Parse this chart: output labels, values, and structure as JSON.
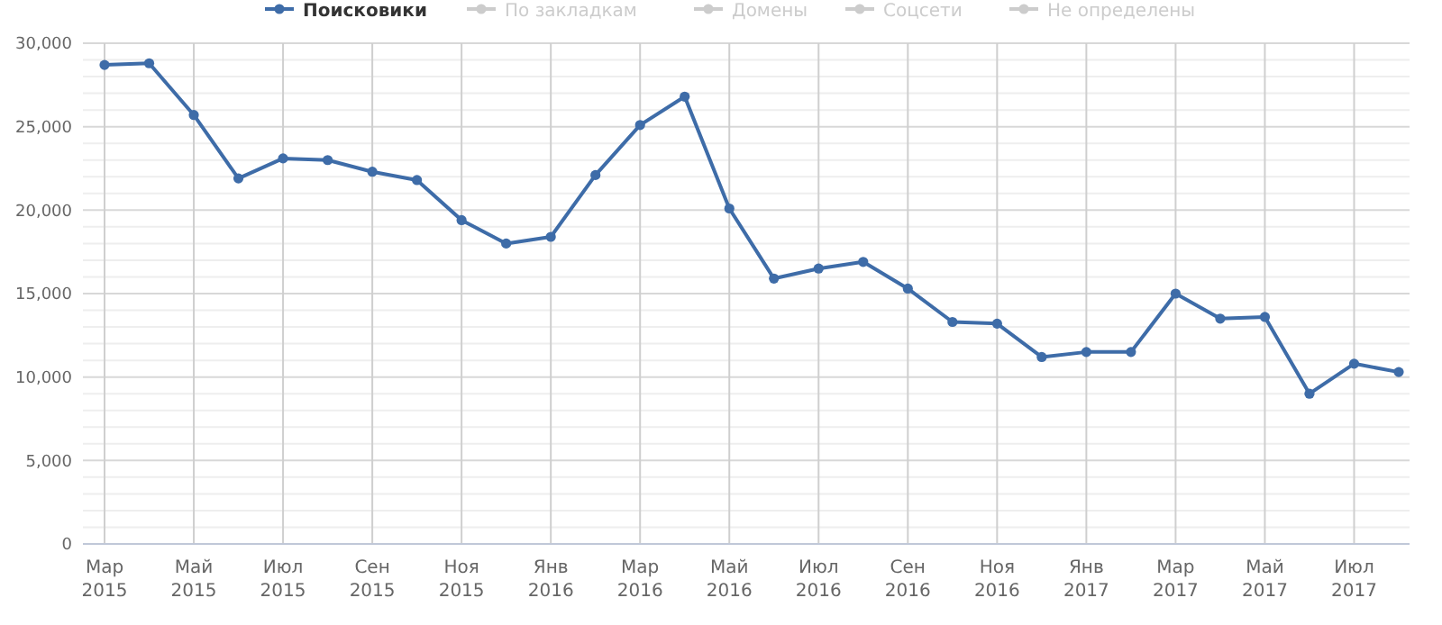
{
  "chart_data": {
    "type": "line",
    "categories": [
      "Мар 2015",
      null,
      "Май 2015",
      null,
      "Июл 2015",
      null,
      "Сен 2015",
      null,
      "Ноя 2015",
      null,
      "Янв 2016",
      null,
      "Мар 2016",
      null,
      "Май 2016",
      null,
      "Июл 2016",
      null,
      "Сен 2016",
      null,
      "Ноя 2016",
      null,
      "Янв 2017",
      null,
      "Мар 2017",
      null,
      "Май 2017",
      null,
      "Июл 2017",
      null
    ],
    "series": [
      {
        "name": "Поисковики",
        "color": "#3e6ca8",
        "values": [
          28700,
          28800,
          25700,
          21900,
          23100,
          23000,
          22300,
          21800,
          19400,
          18000,
          18400,
          22100,
          25100,
          26800,
          20100,
          15900,
          16500,
          16900,
          15300,
          13300,
          13200,
          11200,
          11500,
          11500,
          15000,
          13500,
          13600,
          9000,
          10800,
          10300
        ]
      },
      {
        "name": "По закладкам",
        "color": "#cccccc",
        "values": [
          null,
          null,
          null,
          null,
          null,
          null,
          null,
          null,
          null,
          null,
          null,
          null,
          null,
          null,
          null,
          null,
          null,
          null,
          null,
          null,
          null,
          null,
          null,
          null,
          null,
          null,
          null,
          null,
          null,
          null
        ]
      },
      {
        "name": "Домены",
        "color": "#cccccc",
        "values": [
          null,
          null,
          null,
          null,
          null,
          null,
          null,
          null,
          null,
          null,
          null,
          null,
          null,
          null,
          null,
          null,
          null,
          null,
          null,
          null,
          null,
          null,
          null,
          null,
          null,
          null,
          null,
          null,
          null,
          null
        ]
      },
      {
        "name": "Соцсети",
        "color": "#cccccc",
        "values": [
          null,
          null,
          null,
          null,
          null,
          null,
          null,
          null,
          null,
          null,
          null,
          null,
          null,
          null,
          null,
          null,
          null,
          null,
          null,
          null,
          null,
          null,
          null,
          null,
          null,
          null,
          null,
          null,
          null,
          null
        ]
      },
      {
        "name": "Не определены",
        "color": "#cccccc",
        "values": [
          null,
          null,
          null,
          null,
          null,
          null,
          null,
          null,
          null,
          null,
          null,
          null,
          null,
          null,
          null,
          null,
          null,
          null,
          null,
          null,
          null,
          null,
          null,
          null,
          null,
          null,
          null,
          null,
          null,
          null
        ]
      }
    ],
    "ylim": [
      0,
      30000
    ],
    "yticks": [
      {
        "value": 0,
        "label": "0"
      },
      {
        "value": 1000,
        "label": null
      },
      {
        "value": 2000,
        "label": null
      },
      {
        "value": 3000,
        "label": null
      },
      {
        "value": 4000,
        "label": null
      },
      {
        "value": 5000,
        "label": "5,000"
      },
      {
        "value": 6000,
        "label": null
      },
      {
        "value": 7000,
        "label": null
      },
      {
        "value": 8000,
        "label": null
      },
      {
        "value": 9000,
        "label": null
      },
      {
        "value": 10000,
        "label": "10,000"
      },
      {
        "value": 11000,
        "label": null
      },
      {
        "value": 12000,
        "label": null
      },
      {
        "value": 13000,
        "label": null
      },
      {
        "value": 14000,
        "label": null
      },
      {
        "value": 15000,
        "label": "15,000"
      },
      {
        "value": 16000,
        "label": null
      },
      {
        "value": 17000,
        "label": null
      },
      {
        "value": 18000,
        "label": null
      },
      {
        "value": 19000,
        "label": null
      },
      {
        "value": 20000,
        "label": "20,000"
      },
      {
        "value": 21000,
        "label": null
      },
      {
        "value": 22000,
        "label": null
      },
      {
        "value": 23000,
        "label": null
      },
      {
        "value": 24000,
        "label": null
      },
      {
        "value": 25000,
        "label": "25,000"
      },
      {
        "value": 26000,
        "label": null
      },
      {
        "value": 27000,
        "label": null
      },
      {
        "value": 28000,
        "label": null
      },
      {
        "value": 29000,
        "label": null
      },
      {
        "value": 30000,
        "label": "30,000"
      }
    ],
    "grid": true,
    "legend": "top",
    "marker": "circle",
    "line_style": "solid"
  }
}
